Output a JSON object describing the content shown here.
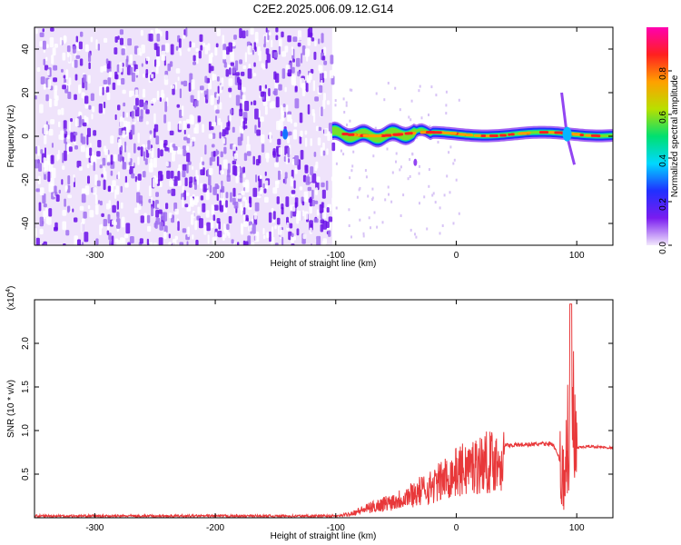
{
  "title": "C2E2.2025.006.09.12.G14",
  "chart_data": [
    {
      "type": "heatmap",
      "xlabel": "Height of straight line (km)",
      "ylabel": "Frequency (Hz)",
      "xlim": [
        -350,
        130
      ],
      "ylim": [
        -50,
        50
      ],
      "x_ticks": [
        -300,
        -200,
        -100,
        0,
        100
      ],
      "y_ticks": [
        -40,
        -20,
        0,
        20,
        40
      ],
      "colorbar": {
        "label": "Normalized spectral amplitude",
        "range": [
          0.0,
          1.0
        ],
        "ticks": [
          "0.0",
          "0.2",
          "0.4",
          "0.6",
          "0.8"
        ],
        "colors": [
          "#f2e8fc",
          "#7a1cf0",
          "#2030ff",
          "#00d8ff",
          "#00e070",
          "#b8e000",
          "#ffa000",
          "#ff2020",
          "#ff00b0"
        ]
      },
      "regions": [
        {
          "x_from": -350,
          "x_to": -103,
          "description": "broadband noise",
          "freq_from": -50,
          "freq_to": 50,
          "amplitude": 0.15
        },
        {
          "x_from": -103,
          "x_to": 130,
          "description": "narrow signal band near 0 Hz",
          "freq_center": 1,
          "amplitude": 0.9
        }
      ],
      "grid": false
    },
    {
      "type": "line",
      "xlabel": "Height of straight line (km)",
      "ylabel": "SNR (10 * v/v)",
      "multiplier": "(x10",
      "multiplier_exp": "4",
      "xlim": [
        -350,
        130
      ],
      "ylim": [
        0,
        2.5
      ],
      "x_ticks": [
        -300,
        -200,
        -100,
        0,
        100
      ],
      "y_ticks": [
        "0.5",
        "1.0",
        "1.5",
        "2.0"
      ],
      "color": "#e8383a",
      "series": [
        {
          "x": [
            -350,
            -300,
            -250,
            -200,
            -150,
            -100,
            -90,
            -70,
            -50,
            -30,
            -20,
            -10,
            0,
            10,
            20,
            30,
            40,
            60,
            80,
            88,
            92,
            95,
            98,
            100,
            110,
            120,
            130
          ],
          "y": [
            0.02,
            0.02,
            0.02,
            0.02,
            0.02,
            0.02,
            0.05,
            0.15,
            0.25,
            0.38,
            0.45,
            0.55,
            0.65,
            0.72,
            0.78,
            0.81,
            0.83,
            0.84,
            0.85,
            0.6,
            0.9,
            2.45,
            1.0,
            0.8,
            0.82,
            0.81,
            0.8
          ]
        }
      ],
      "grid": false
    }
  ]
}
